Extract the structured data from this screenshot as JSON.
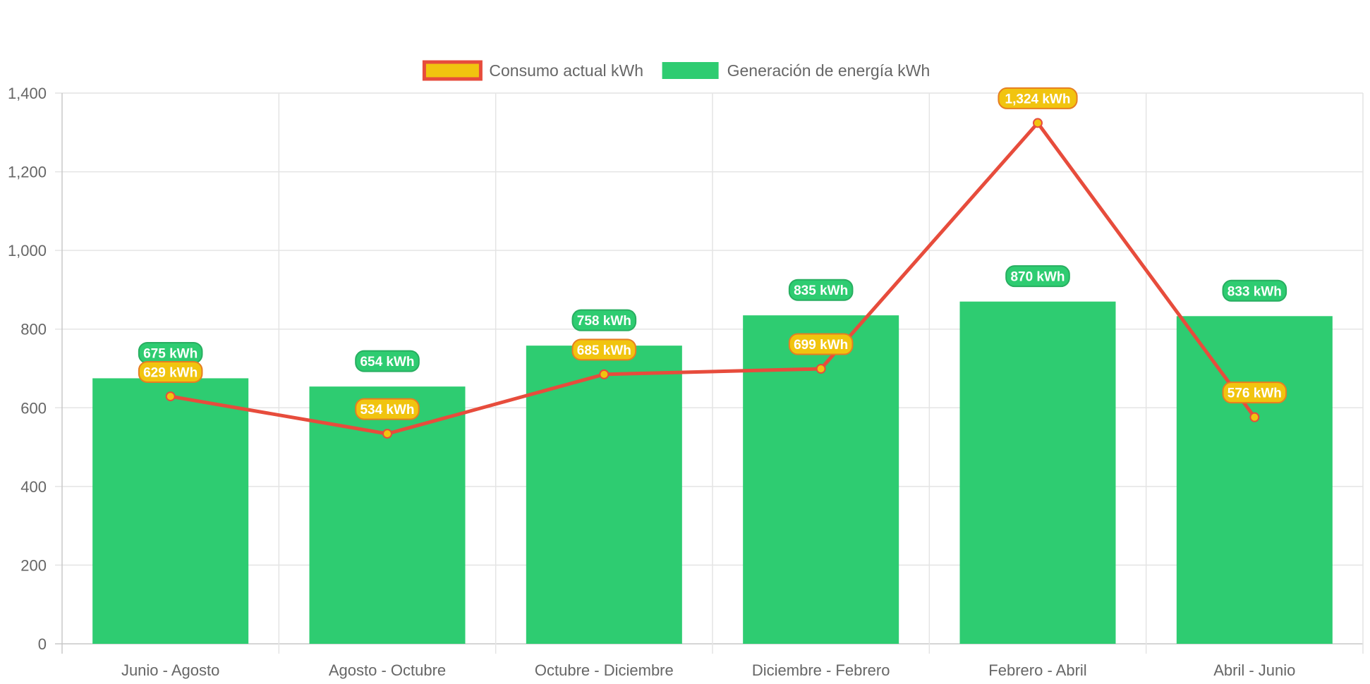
{
  "chart_data": {
    "type": "bar",
    "categories": [
      "Junio - Agosto",
      "Agosto - Octubre",
      "Octubre - Diciembre",
      "Diciembre - Febrero",
      "Febrero - Abril",
      "Abril - Junio"
    ],
    "series": [
      {
        "name": "Consumo actual kWh",
        "type": "line",
        "values": [
          629,
          534,
          685,
          699,
          1324,
          576
        ],
        "labels": [
          "629 kWh",
          "534 kWh",
          "685 kWh",
          "699 kWh",
          "1,324 kWh",
          "576 kWh"
        ],
        "line_color": "#e74c3c",
        "fill_color": "#f1c40f"
      },
      {
        "name": "Generación de energía kWh",
        "type": "bar",
        "values": [
          675,
          654,
          758,
          835,
          870,
          833
        ],
        "labels": [
          "675 kWh",
          "654 kWh",
          "758 kWh",
          "835 kWh",
          "870 kWh",
          "833 kWh"
        ],
        "color": "#2ecc71"
      }
    ],
    "ylim": [
      0,
      1400
    ],
    "yticks": [
      "0",
      "200",
      "400",
      "600",
      "800",
      "1,000",
      "1,200",
      "1,400"
    ],
    "grid": true,
    "legend_position": "top"
  }
}
